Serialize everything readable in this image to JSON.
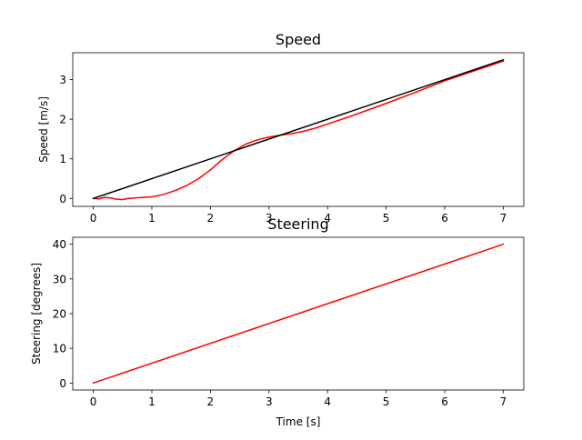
{
  "chart_data": [
    {
      "type": "line",
      "title": "Speed",
      "xlabel": "",
      "ylabel": "Speed [m/s]",
      "xlim": [
        -0.35,
        7.35
      ],
      "ylim": [
        -0.2,
        3.68
      ],
      "x_ticks": [
        0,
        1,
        2,
        3,
        4,
        5,
        6,
        7
      ],
      "y_ticks": [
        0,
        1,
        2,
        3
      ],
      "grid": false,
      "series": [
        {
          "color": "#ff0000",
          "x": [
            0,
            0.1,
            0.2,
            0.3,
            0.4,
            0.5,
            0.6,
            0.8,
            1.0,
            1.2,
            1.4,
            1.6,
            1.8,
            2.0,
            2.2,
            2.4,
            2.6,
            2.8,
            3.0,
            3.2,
            3.4,
            3.6,
            3.8,
            4.0,
            4.5,
            5.0,
            5.5,
            6.0,
            6.5,
            7.0
          ],
          "y": [
            0,
            -0.01,
            0.03,
            0.01,
            -0.02,
            -0.03,
            0.0,
            0.02,
            0.04,
            0.1,
            0.2,
            0.33,
            0.5,
            0.72,
            0.98,
            1.2,
            1.37,
            1.48,
            1.55,
            1.6,
            1.64,
            1.7,
            1.78,
            1.88,
            2.13,
            2.4,
            2.68,
            2.97,
            3.22,
            3.47
          ]
        },
        {
          "color": "#000000",
          "x": [
            0,
            7
          ],
          "y": [
            0,
            3.5
          ]
        }
      ]
    },
    {
      "type": "line",
      "title": "Steering",
      "xlabel": "Time [s]",
      "ylabel": "Steering [degrees]",
      "xlim": [
        -0.35,
        7.35
      ],
      "ylim": [
        -2.0,
        42.0
      ],
      "x_ticks": [
        0,
        1,
        2,
        3,
        4,
        5,
        6,
        7
      ],
      "y_ticks": [
        0,
        10,
        20,
        30,
        40
      ],
      "grid": false,
      "series": [
        {
          "color": "#ff0000",
          "x": [
            0,
            7
          ],
          "y": [
            0,
            40
          ]
        }
      ]
    }
  ]
}
